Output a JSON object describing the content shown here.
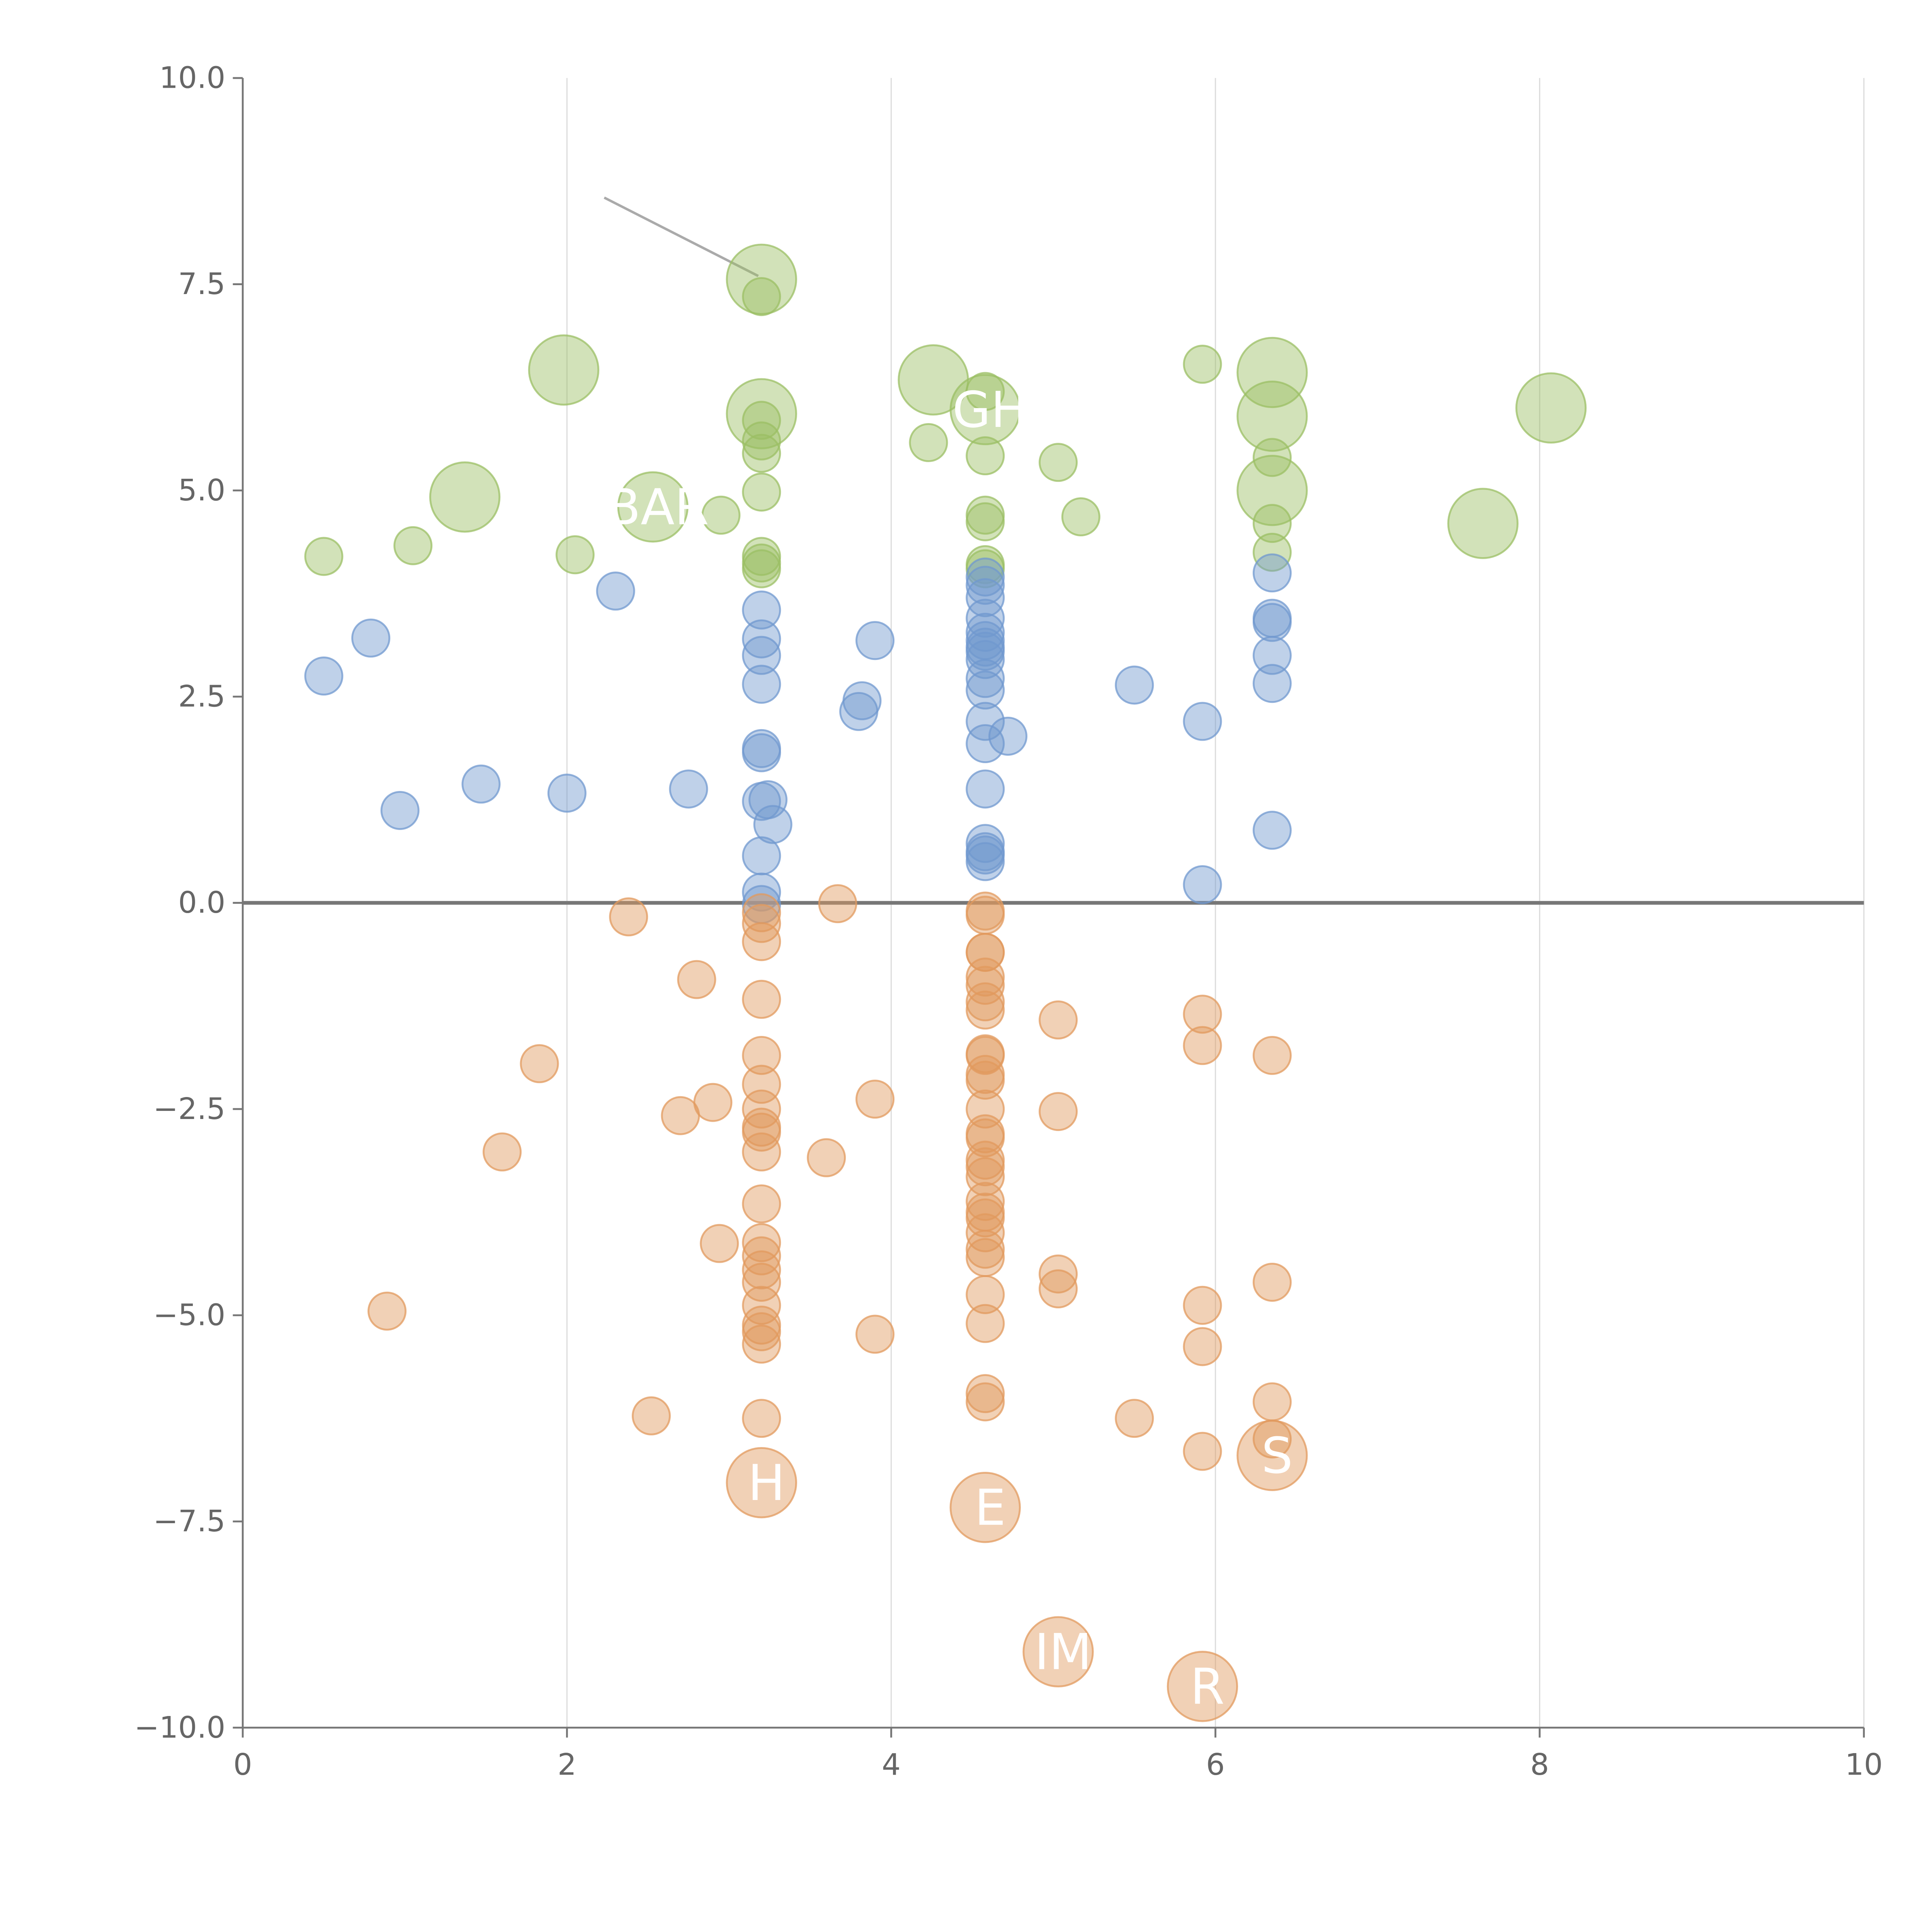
{
  "chart_data": {
    "type": "scatter",
    "subtype": "bubble",
    "title": "",
    "xlabel": "",
    "ylabel": "",
    "xlim": [
      0,
      10
    ],
    "ylim": [
      -10,
      10
    ],
    "x_ticks": [
      "0",
      "2",
      "4",
      "6",
      "8",
      "10"
    ],
    "y_ticks": [
      "10.0",
      "7.5",
      "5.0",
      "2.5",
      "0.0",
      "−2.5",
      "−5.0",
      "−7.5",
      "−10.0"
    ],
    "x_tick_values": [
      0,
      2,
      4,
      6,
      8,
      10
    ],
    "y_tick_values": [
      10,
      7.5,
      5,
      2.5,
      0,
      -2.5,
      -5,
      -7.5,
      -10
    ],
    "vertical_grid": true,
    "horizontal_grid": false,
    "zero_line": true,
    "marker_opacity": 0.45,
    "series": [
      {
        "color": "#9bbf64",
        "points": [
          [
            0.5,
            4.2
          ],
          [
            1.05,
            4.33
          ],
          [
            2.05,
            4.22
          ],
          [
            2.95,
            4.7
          ],
          [
            3.2,
            7.35
          ],
          [
            3.2,
            5.85
          ],
          [
            3.2,
            5.6
          ],
          [
            3.2,
            5.45
          ],
          [
            3.2,
            4.98
          ],
          [
            3.2,
            4.2
          ],
          [
            3.2,
            4.12
          ],
          [
            3.2,
            4.05
          ],
          [
            4.23,
            5.58
          ],
          [
            4.58,
            6.2
          ],
          [
            4.58,
            5.42
          ],
          [
            4.58,
            4.7
          ],
          [
            4.58,
            4.62
          ],
          [
            4.58,
            4.1
          ],
          [
            4.58,
            4.05
          ],
          [
            5.03,
            5.34
          ],
          [
            5.17,
            4.68
          ],
          [
            5.92,
            6.53
          ],
          [
            6.35,
            5.4
          ],
          [
            6.35,
            4.6
          ],
          [
            6.35,
            4.25
          ]
        ],
        "sizes": [
          1,
          1,
          1,
          1,
          1,
          1,
          1,
          1,
          1,
          1,
          1,
          1,
          1,
          1,
          1,
          1,
          1,
          1,
          1,
          1,
          1,
          1,
          1,
          1,
          1
        ]
      },
      {
        "color": "#7098cf",
        "points": [
          [
            0.5,
            2.75
          ],
          [
            0.79,
            3.21
          ],
          [
            0.97,
            1.12
          ],
          [
            1.47,
            1.44
          ],
          [
            2.0,
            1.33
          ],
          [
            2.3,
            3.78
          ],
          [
            2.75,
            1.38
          ],
          [
            3.2,
            3.55
          ],
          [
            3.2,
            3.2
          ],
          [
            3.2,
            3.0
          ],
          [
            3.2,
            2.65
          ],
          [
            3.2,
            1.87
          ],
          [
            3.2,
            1.82
          ],
          [
            3.2,
            1.23
          ],
          [
            3.24,
            1.25
          ],
          [
            3.27,
            0.95
          ],
          [
            3.2,
            0.57
          ],
          [
            3.2,
            0.13
          ],
          [
            3.2,
            -0.02
          ],
          [
            3.8,
            2.32
          ],
          [
            3.82,
            2.45
          ],
          [
            3.9,
            3.18
          ],
          [
            4.58,
            3.95
          ],
          [
            4.58,
            3.85
          ],
          [
            4.58,
            3.7
          ],
          [
            4.58,
            3.45
          ],
          [
            4.58,
            3.28
          ],
          [
            4.58,
            3.18
          ],
          [
            4.58,
            3.1
          ],
          [
            4.58,
            3.05
          ],
          [
            4.58,
            2.95
          ],
          [
            4.58,
            2.72
          ],
          [
            4.58,
            2.58
          ],
          [
            4.58,
            2.2
          ],
          [
            4.58,
            1.93
          ],
          [
            4.72,
            2.02
          ],
          [
            4.58,
            1.38
          ],
          [
            4.58,
            0.72
          ],
          [
            4.58,
            0.62
          ],
          [
            4.58,
            0.58
          ],
          [
            4.58,
            0.5
          ],
          [
            5.5,
            2.64
          ],
          [
            5.92,
            2.2
          ],
          [
            5.92,
            0.22
          ],
          [
            6.35,
            4.0
          ],
          [
            6.35,
            3.45
          ],
          [
            6.35,
            3.4
          ],
          [
            6.35,
            3.0
          ],
          [
            6.35,
            2.66
          ],
          [
            6.35,
            0.88
          ]
        ]
      },
      {
        "color": "#e19a5e",
        "points": [
          [
            0.89,
            -4.95
          ],
          [
            1.6,
            -3.02
          ],
          [
            1.83,
            -1.95
          ],
          [
            2.38,
            -0.17
          ],
          [
            2.52,
            -6.22
          ],
          [
            2.7,
            -2.58
          ],
          [
            2.8,
            -0.93
          ],
          [
            2.9,
            -2.42
          ],
          [
            2.94,
            -4.13
          ],
          [
            3.2,
            -0.12
          ],
          [
            3.2,
            -0.25
          ],
          [
            3.2,
            -0.47
          ],
          [
            3.2,
            -1.17
          ],
          [
            3.2,
            -1.85
          ],
          [
            3.2,
            -2.2
          ],
          [
            3.2,
            -2.5
          ],
          [
            3.2,
            -2.72
          ],
          [
            3.2,
            -2.78
          ],
          [
            3.2,
            -3.02
          ],
          [
            3.2,
            -3.65
          ],
          [
            3.2,
            -4.12
          ],
          [
            3.2,
            -4.28
          ],
          [
            3.2,
            -4.45
          ],
          [
            3.2,
            -4.6
          ],
          [
            3.2,
            -4.88
          ],
          [
            3.2,
            -5.12
          ],
          [
            3.2,
            -5.2
          ],
          [
            3.2,
            -5.35
          ],
          [
            3.2,
            -6.25
          ],
          [
            3.6,
            -3.09
          ],
          [
            3.67,
            -0.01
          ],
          [
            3.9,
            -2.38
          ],
          [
            3.9,
            -5.23
          ],
          [
            4.58,
            -0.1
          ],
          [
            4.58,
            -0.15
          ],
          [
            4.58,
            -0.6
          ],
          [
            4.58,
            -0.6
          ],
          [
            4.58,
            -0.9
          ],
          [
            4.58,
            -1.0
          ],
          [
            4.58,
            -1.2
          ],
          [
            4.58,
            -1.3
          ],
          [
            4.58,
            -1.83
          ],
          [
            4.58,
            -1.85
          ],
          [
            4.58,
            -2.08
          ],
          [
            4.58,
            -2.15
          ],
          [
            4.58,
            -2.5
          ],
          [
            4.58,
            -2.8
          ],
          [
            4.58,
            -2.85
          ],
          [
            4.58,
            -3.12
          ],
          [
            4.58,
            -3.2
          ],
          [
            4.58,
            -3.32
          ],
          [
            4.58,
            -3.62
          ],
          [
            4.58,
            -3.75
          ],
          [
            4.58,
            -3.82
          ],
          [
            4.58,
            -4.0
          ],
          [
            4.58,
            -4.2
          ],
          [
            4.58,
            -4.3
          ],
          [
            4.58,
            -4.75
          ],
          [
            4.58,
            -5.1
          ],
          [
            4.58,
            -5.95
          ],
          [
            4.58,
            -6.05
          ],
          [
            5.03,
            -1.42
          ],
          [
            5.03,
            -2.53
          ],
          [
            5.03,
            -4.5
          ],
          [
            5.03,
            -4.68
          ],
          [
            5.5,
            -6.25
          ],
          [
            5.92,
            -1.35
          ],
          [
            5.92,
            -1.73
          ],
          [
            5.92,
            -4.88
          ],
          [
            5.92,
            -5.38
          ],
          [
            5.92,
            -6.65
          ],
          [
            6.35,
            -1.85
          ],
          [
            6.35,
            -4.6
          ],
          [
            6.35,
            -6.05
          ],
          [
            6.35,
            -6.5
          ]
        ]
      }
    ],
    "large_bubbles": [
      {
        "x": 3.2,
        "y": 7.56,
        "color": "#9bbf64",
        "label": ""
      },
      {
        "x": 1.98,
        "y": 6.46,
        "color": "#9bbf64",
        "label": ""
      },
      {
        "x": 3.2,
        "y": 5.93,
        "color": "#9bbf64",
        "label": ""
      },
      {
        "x": 4.26,
        "y": 6.34,
        "color": "#9bbf64",
        "label": ""
      },
      {
        "x": 4.58,
        "y": 5.98,
        "color": "#9bbf64",
        "label": "GH"
      },
      {
        "x": 1.37,
        "y": 4.92,
        "color": "#9bbf64",
        "label": ""
      },
      {
        "x": 2.53,
        "y": 4.8,
        "color": "#9bbf64",
        "label": "BAR"
      },
      {
        "x": 6.35,
        "y": 6.43,
        "color": "#9bbf64",
        "label": ""
      },
      {
        "x": 6.35,
        "y": 5.9,
        "color": "#9bbf64",
        "label": ""
      },
      {
        "x": 6.35,
        "y": 5.0,
        "color": "#9bbf64",
        "label": ""
      },
      {
        "x": 8.07,
        "y": 6.0,
        "color": "#9bbf64",
        "label": ""
      },
      {
        "x": 7.65,
        "y": 4.6,
        "color": "#9bbf64",
        "label": ""
      },
      {
        "x": 3.2,
        "y": -7.03,
        "color": "#e19a5e",
        "label": "H"
      },
      {
        "x": 4.58,
        "y": -7.33,
        "color": "#e19a5e",
        "label": "E"
      },
      {
        "x": 6.35,
        "y": -6.7,
        "color": "#e19a5e",
        "label": "S"
      },
      {
        "x": 5.03,
        "y": -9.08,
        "color": "#e19a5e",
        "label": "IM"
      },
      {
        "x": 5.92,
        "y": -9.5,
        "color": "#e19a5e",
        "label": "R"
      }
    ],
    "leader_line": {
      "from": [
        2.23,
        8.55
      ],
      "to": [
        3.18,
        7.6
      ]
    }
  }
}
